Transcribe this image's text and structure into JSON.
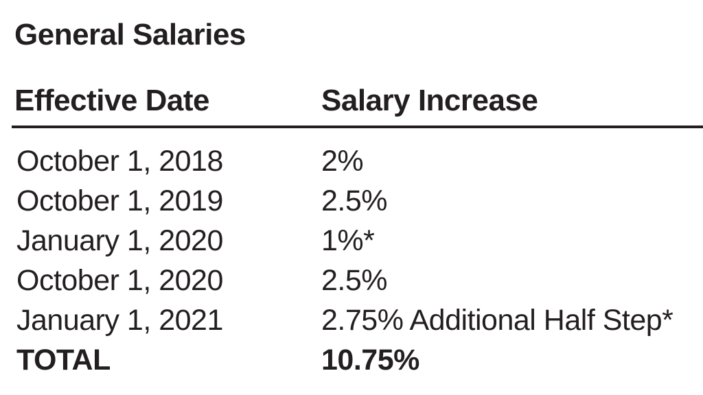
{
  "section": {
    "title": "General Salaries"
  },
  "table": {
    "columns": [
      {
        "label": "Effective Date"
      },
      {
        "label": "Salary Increase"
      }
    ],
    "rows": [
      {
        "date": "October 1, 2018",
        "increase": "2%"
      },
      {
        "date": "October 1, 2019",
        "increase": "2.5%"
      },
      {
        "date": "January 1, 2020",
        "increase": "1%*"
      },
      {
        "date": "October 1, 2020",
        "increase": "2.5%"
      },
      {
        "date": "January 1, 2021",
        "increase": "2.75% Additional Half Step*"
      }
    ],
    "total_row": {
      "label": "TOTAL",
      "value": "10.75%"
    }
  },
  "colors": {
    "text": "#231f20",
    "background": "#ffffff",
    "rule": "#231f20"
  }
}
